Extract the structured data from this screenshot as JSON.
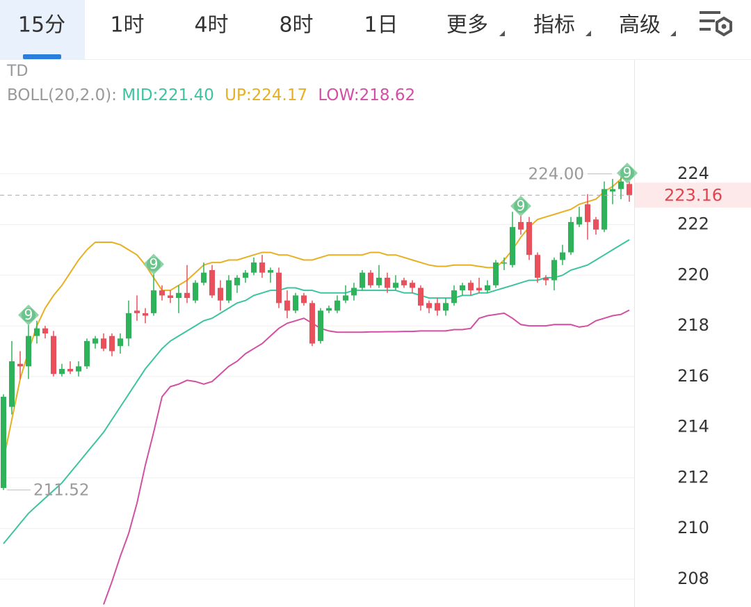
{
  "tabs": [
    "15分",
    "1时",
    "4时",
    "8时",
    "1日",
    "更多",
    "指标",
    "高级"
  ],
  "chart_data": {
    "type": "candlestick",
    "indicator": "TD",
    "td_label": "9",
    "overlay_title": "BOLL(20,2.0):",
    "up_color": "#2fb35a",
    "down_color": "#e8515c",
    "open": [
      211.6,
      214.8,
      216.5,
      216.4,
      217.6,
      217.9,
      217.6,
      216.1,
      216.3,
      216.2,
      216.4,
      217.3,
      217.5,
      217.6,
      217.2,
      217.5,
      218.6,
      218.5,
      218.5,
      219.4,
      219.2,
      219.1,
      219.3,
      219.0,
      219.7,
      220.2,
      219.5,
      219.0,
      219.6,
      219.9,
      220.1,
      220.5,
      220.1,
      220.1,
      219.0,
      218.6,
      219.2,
      218.9,
      217.4,
      218.6,
      218.6,
      219.0,
      219.2,
      219.5,
      220.1,
      219.6,
      219.9,
      219.5,
      219.8,
      219.7,
      219.5,
      218.9,
      218.9,
      218.6,
      218.9,
      219.4,
      219.7,
      219.5,
      219.4,
      219.6,
      220.5,
      220.4,
      222.1,
      222.1,
      220.8,
      219.9,
      219.8,
      220.6,
      220.9,
      222.0,
      222.8,
      222.2,
      221.8,
      223.3,
      223.4,
      223.6
    ],
    "high": [
      215.3,
      217.4,
      217.0,
      218.1,
      218.2,
      218.0,
      217.8,
      216.5,
      216.6,
      216.6,
      217.5,
      217.6,
      217.7,
      217.7,
      217.7,
      219.0,
      219.2,
      218.7,
      220.1,
      219.6,
      219.4,
      219.6,
      220.4,
      219.8,
      220.5,
      220.4,
      219.8,
      220.0,
      220.0,
      220.2,
      220.7,
      220.8,
      220.3,
      220.3,
      219.4,
      219.3,
      219.3,
      219.0,
      218.7,
      218.8,
      219.2,
      219.6,
      219.7,
      220.2,
      220.2,
      220.4,
      220.1,
      220.0,
      219.9,
      219.8,
      219.6,
      219.0,
      219.1,
      219.1,
      219.6,
      219.7,
      219.8,
      219.9,
      219.8,
      220.6,
      220.7,
      222.5,
      222.4,
      222.3,
      220.9,
      220.0,
      220.7,
      221.2,
      222.3,
      222.7,
      223.2,
      222.3,
      223.7,
      223.8,
      224.0,
      223.7
    ],
    "low": [
      211.52,
      214.5,
      215.9,
      215.9,
      217.3,
      217.5,
      216.0,
      216.0,
      216.1,
      216.0,
      216.3,
      217.1,
      217.0,
      216.8,
      216.9,
      217.2,
      218.2,
      218.1,
      218.4,
      219.0,
      218.9,
      218.5,
      218.9,
      218.9,
      219.6,
      219.1,
      218.6,
      218.9,
      219.3,
      219.7,
      220.0,
      219.9,
      219.7,
      218.7,
      218.3,
      218.5,
      218.8,
      217.2,
      217.3,
      218.5,
      218.5,
      218.9,
      219.0,
      219.4,
      219.5,
      219.5,
      219.3,
      219.4,
      219.5,
      219.3,
      218.6,
      218.5,
      218.4,
      218.4,
      218.8,
      219.2,
      219.2,
      219.3,
      219.3,
      219.5,
      220.2,
      220.3,
      221.6,
      220.6,
      219.7,
      219.6,
      219.4,
      220.4,
      220.8,
      221.9,
      221.4,
      221.6,
      221.7,
      222.8,
      223.0,
      222.9
    ],
    "close": [
      215.2,
      216.6,
      216.4,
      217.6,
      217.9,
      217.7,
      216.1,
      216.3,
      216.2,
      216.4,
      217.4,
      217.5,
      217.1,
      217.0,
      217.5,
      218.5,
      218.5,
      218.4,
      219.4,
      219.2,
      219.1,
      219.3,
      219.1,
      219.7,
      220.1,
      219.2,
      219.0,
      219.8,
      219.9,
      220.1,
      220.5,
      220.1,
      220.2,
      218.9,
      218.6,
      219.2,
      218.9,
      217.3,
      218.6,
      218.7,
      219.0,
      219.2,
      219.5,
      220.1,
      219.6,
      219.9,
      219.5,
      219.7,
      219.6,
      219.5,
      218.8,
      218.7,
      218.6,
      218.9,
      219.4,
      219.6,
      219.4,
      219.4,
      219.6,
      220.5,
      220.5,
      221.9,
      221.8,
      220.8,
      219.9,
      219.8,
      220.6,
      220.9,
      222.1,
      222.3,
      222.1,
      221.8,
      223.4,
      223.4,
      223.7,
      223.16
    ],
    "series": [
      {
        "name": "MID:221.40",
        "color": "#3cc3a0",
        "values": [
          209.4,
          209.8,
          210.2,
          210.6,
          210.9,
          211.2,
          211.5,
          211.8,
          212.2,
          212.6,
          213.0,
          213.4,
          213.8,
          214.3,
          214.8,
          215.3,
          215.8,
          216.3,
          216.7,
          217.1,
          217.4,
          217.6,
          217.8,
          218.0,
          218.2,
          218.3,
          218.5,
          218.7,
          218.9,
          219.0,
          219.2,
          219.3,
          219.4,
          219.4,
          219.5,
          219.5,
          219.4,
          219.4,
          219.3,
          219.3,
          219.3,
          219.3,
          219.4,
          219.4,
          219.4,
          219.4,
          219.4,
          219.4,
          219.3,
          219.3,
          219.2,
          219.1,
          219.1,
          219.1,
          219.1,
          219.2,
          219.2,
          219.3,
          219.3,
          219.4,
          219.5,
          219.6,
          219.7,
          219.8,
          219.8,
          219.9,
          219.9,
          220.0,
          220.2,
          220.3,
          220.4,
          220.6,
          220.8,
          221.0,
          221.2,
          221.4
        ]
      },
      {
        "name": "UP:224.17",
        "color": "#e6b022",
        "values": [
          212.7,
          214.3,
          215.9,
          217.0,
          218.0,
          218.7,
          219.2,
          219.6,
          220.1,
          220.6,
          221.0,
          221.3,
          221.3,
          221.3,
          221.2,
          221.0,
          220.8,
          220.4,
          219.9,
          219.4,
          219.4,
          219.6,
          219.8,
          220.1,
          220.4,
          220.5,
          220.5,
          220.6,
          220.6,
          220.7,
          220.8,
          220.9,
          220.9,
          220.8,
          220.8,
          220.7,
          220.6,
          220.6,
          220.7,
          220.8,
          220.8,
          220.8,
          220.8,
          220.8,
          220.9,
          220.9,
          220.8,
          220.8,
          220.7,
          220.6,
          220.5,
          220.4,
          220.35,
          220.35,
          220.4,
          220.4,
          220.4,
          220.35,
          220.3,
          220.3,
          220.6,
          221.0,
          221.5,
          221.9,
          222.2,
          222.3,
          222.4,
          222.5,
          222.6,
          222.8,
          222.9,
          223.0,
          223.3,
          223.5,
          223.8,
          224.17
        ]
      },
      {
        "name": "LOW:218.62",
        "color": "#d24fa3",
        "values": [
          null,
          null,
          null,
          null,
          null,
          null,
          null,
          null,
          null,
          null,
          null,
          null,
          207.0,
          207.9,
          208.9,
          209.8,
          211.0,
          212.5,
          213.8,
          215.2,
          215.6,
          215.7,
          215.85,
          215.8,
          215.7,
          215.8,
          216.1,
          216.4,
          216.6,
          216.9,
          217.1,
          217.3,
          217.6,
          217.9,
          218.1,
          218.2,
          218.3,
          218.1,
          217.9,
          217.8,
          217.75,
          217.75,
          217.75,
          217.75,
          217.76,
          217.76,
          217.77,
          217.77,
          217.78,
          217.78,
          217.8,
          217.8,
          217.8,
          217.8,
          217.85,
          217.85,
          217.9,
          218.3,
          218.4,
          218.45,
          218.5,
          218.3,
          218.05,
          218.0,
          218.0,
          218.0,
          218.05,
          218.05,
          218.05,
          217.95,
          218.0,
          218.2,
          218.3,
          218.4,
          218.45,
          218.62
        ]
      }
    ],
    "ylim": [
      206.9,
      228.5
    ],
    "yticks": [
      208,
      210,
      212,
      214,
      216,
      218,
      220,
      222,
      224
    ],
    "grid": true,
    "max_marker": {
      "value": 224.0,
      "label": "224.00"
    },
    "min_marker": {
      "value": 211.52,
      "label": "211.52"
    },
    "last_price": {
      "value": 223.16,
      "label": "223.16"
    }
  }
}
